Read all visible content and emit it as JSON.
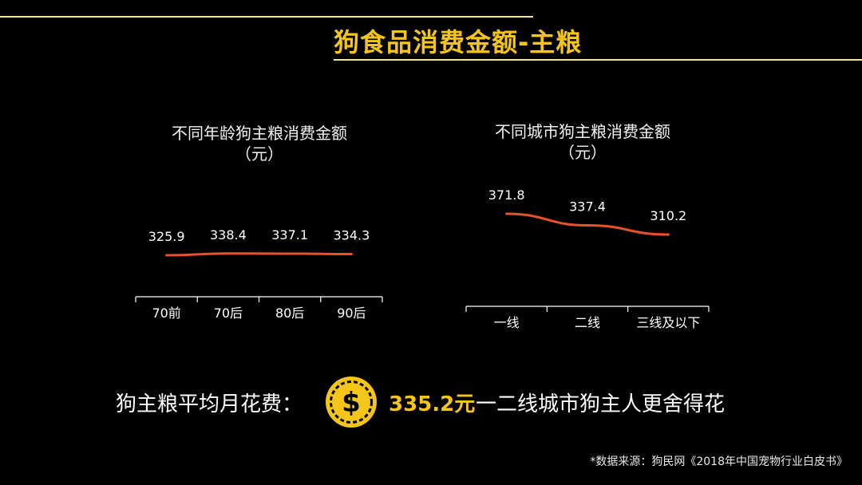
{
  "page_title": "狗食品消费金额-主粮",
  "colors": {
    "accent": "#f5c518",
    "line": "#e8512a",
    "axis": "#ffffff",
    "rule": "#f0e29a"
  },
  "chart_data": [
    {
      "type": "line",
      "title_line1": "不同年龄狗主粮消费金额",
      "title_line2": "（元）",
      "categories": [
        "70前",
        "70后",
        "80后",
        "90后"
      ],
      "values": [
        325.9,
        338.4,
        337.1,
        334.3
      ],
      "value_labels": [
        "325.9",
        "338.4",
        "337.1",
        "334.3"
      ],
      "grid": false
    },
    {
      "type": "line",
      "title_line1": "不同城市狗主粮消费金额",
      "title_line2": "（元）",
      "categories": [
        "一线",
        "二线",
        "三线及以下"
      ],
      "values": [
        371.8,
        337.4,
        310.2
      ],
      "value_labels": [
        "371.8",
        "337.4",
        "310.2"
      ],
      "grid": false
    }
  ],
  "summary": {
    "label": "狗主粮平均月花费：",
    "icon": "dollar-coin-icon",
    "coin_symbol": "$",
    "value": "335.2元",
    "note": "一二线城市狗主人更舍得花"
  },
  "source": "*数据来源：狗民网《2018年中国宠物行业白皮书》"
}
